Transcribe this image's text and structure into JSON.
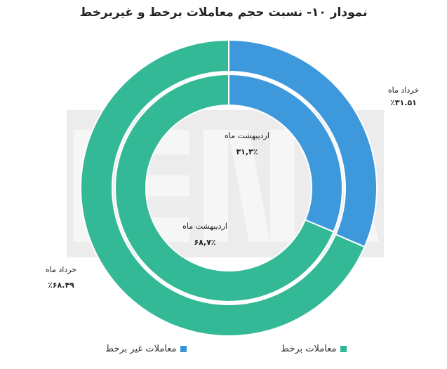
{
  "chart_data": {
    "type": "pie",
    "variant": "nested-donut",
    "title": "نمودار ۱۰- نسبت حجم معاملات برخط و غیربرخط",
    "colors": {
      "online": "#2DB794",
      "offline": "#3796DB"
    },
    "legend_position": "bottom",
    "series": [
      {
        "name": "معاملات غیر برخط",
        "key": "offline"
      },
      {
        "name": "معاملات برخط",
        "key": "online"
      }
    ],
    "rings": [
      {
        "ring": "outer",
        "values": {
          "offline": 31.51,
          "online": 68.49
        },
        "labels": {
          "offline": {
            "month": "خرداد ماه",
            "value": "٪۳۱.۵۱"
          },
          "online": {
            "month": "خرداد ماه",
            "value": "٪۶۸.۴۹"
          }
        }
      },
      {
        "ring": "inner",
        "values": {
          "offline": 31.3,
          "online": 68.7
        },
        "labels": {
          "offline": {
            "month": "اردیبهشت ماه",
            "value": "۳۱,۳٪"
          },
          "online": {
            "month": "اردیبهشت ماه",
            "value": "۶۸,۷٪"
          }
        }
      }
    ]
  },
  "watermark": "ISNA"
}
